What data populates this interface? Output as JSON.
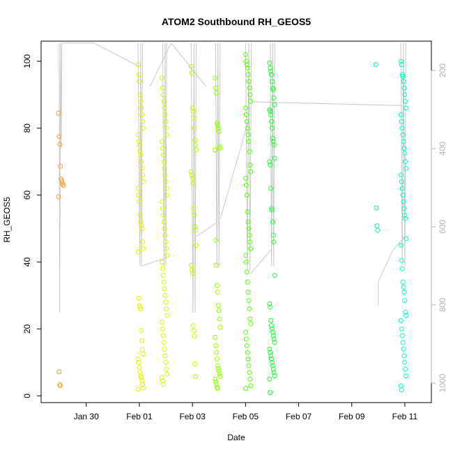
{
  "chart_data": {
    "type": "scatter",
    "title": "ATOM2 Southbound RH_GEOS5",
    "xlabel": "Date",
    "ylabel": "RH_GEOS5",
    "x_ticks": [
      "Jan 30",
      "Feb 01",
      "Feb 03",
      "Feb 05",
      "Feb 07",
      "Feb 09",
      "Feb 11"
    ],
    "x_tick_days": [
      30,
      32,
      34,
      36,
      38,
      40,
      42
    ],
    "xlim_days": [
      28.3,
      43.0
    ],
    "ylim": [
      -2,
      106
    ],
    "y_ticks": [
      0,
      20,
      40,
      60,
      80,
      100
    ],
    "right_axis_ticks": [
      200,
      400,
      600,
      800,
      1000
    ],
    "right_axis_lim": [
      1050,
      125
    ],
    "grid": false,
    "legend": "none",
    "point_color_scale": [
      "#ff8c00",
      "#d4ff00",
      "#00ff00",
      "#00ffcc"
    ],
    "line_color": "#c8c8c8",
    "series": [
      {
        "day": 29.05,
        "color": "#f5a030",
        "rh": [
          84.5,
          77.5,
          75.2,
          68.6,
          64.8,
          64.2,
          63.6,
          63.2,
          62.8,
          59.5,
          7.2,
          3.4,
          3.0
        ],
        "pressure_profile": [
          [
            28.98,
            130
          ],
          [
            29.0,
            820
          ],
          [
            29.03,
            130
          ],
          [
            29.06,
            400
          ],
          [
            29.08,
            130
          ]
        ]
      },
      {
        "day": 32.05,
        "color": "#e0f000",
        "rh": [
          99,
          96,
          94,
          90,
          88,
          86,
          84,
          82,
          80,
          78,
          76,
          75,
          73,
          72,
          70,
          68,
          66,
          64,
          62,
          60,
          58,
          54,
          52,
          51,
          50,
          46,
          44,
          43,
          29.2,
          27,
          26.5,
          26,
          19.5,
          16.5,
          13.8,
          12.5,
          11,
          10,
          8.5,
          7,
          6,
          5.5,
          4.5,
          3.4,
          2.4,
          2.0
        ],
        "pressure_profile": [
          [
            31.95,
            130
          ],
          [
            32.02,
            700
          ],
          [
            32.05,
            130
          ],
          [
            32.08,
            700
          ],
          [
            32.12,
            130
          ]
        ]
      },
      {
        "day": 32.95,
        "color": "#d8f400",
        "rh": [
          95,
          92,
          90,
          88,
          86,
          84,
          82,
          80,
          78,
          76,
          74,
          72,
          70,
          68,
          66,
          64,
          62,
          60,
          58,
          56,
          54,
          52,
          50,
          48,
          46,
          44,
          42,
          40,
          38,
          36,
          34,
          32,
          30,
          28,
          26,
          24,
          22,
          20,
          18,
          16,
          14,
          12,
          10,
          8,
          6.5,
          5.5,
          4.5,
          3.5
        ],
        "pressure_profile": [
          [
            32.88,
            130
          ],
          [
            32.93,
            700
          ],
          [
            32.97,
            130
          ],
          [
            33.0,
            700
          ],
          [
            33.03,
            130
          ]
        ]
      },
      {
        "day": 34.05,
        "color": "#b8ff00",
        "rh": [
          98.5,
          96.5,
          86,
          85,
          83,
          80,
          76.5,
          75,
          73.5,
          67,
          66,
          65,
          63.5,
          56,
          54,
          50.5,
          49.5,
          45,
          39,
          37.6,
          36.5,
          21,
          19.5,
          17.8,
          9.6,
          5.8
        ],
        "pressure_profile": [
          [
            33.95,
            130
          ],
          [
            34.02,
            820
          ],
          [
            34.06,
            130
          ],
          [
            34.1,
            820
          ],
          [
            34.14,
            130
          ]
        ]
      },
      {
        "day": 34.95,
        "color": "#8cff00",
        "rh": [
          95,
          92,
          90.5,
          81.5,
          80.8,
          80,
          79,
          74.5,
          74,
          73.5,
          46.5,
          39,
          33,
          31,
          27,
          25.5,
          23,
          20.5,
          17.5,
          15,
          13,
          11,
          9,
          8.2,
          7.4,
          6.6,
          5.8,
          5,
          4.2,
          3.4,
          2.6,
          2.2
        ],
        "pressure_profile": [
          [
            34.87,
            130
          ],
          [
            34.92,
            700
          ],
          [
            34.96,
            130
          ],
          [
            35.0,
            700
          ],
          [
            35.04,
            130
          ]
        ]
      },
      {
        "day": 36.1,
        "color": "#4cff00",
        "rh": [
          102,
          100,
          99,
          98,
          96,
          94,
          92,
          90,
          88,
          86,
          84,
          82,
          80,
          78,
          76,
          73,
          69,
          67,
          65,
          63,
          60,
          55,
          52,
          50,
          48,
          46,
          44,
          42,
          40,
          37,
          34,
          31,
          28.5,
          26,
          23,
          21.5,
          19,
          17,
          15,
          13,
          11,
          9,
          7,
          5,
          3,
          2.2
        ],
        "pressure_profile": [
          [
            36.0,
            130
          ],
          [
            36.07,
            710
          ],
          [
            36.12,
            130
          ],
          [
            36.17,
            710
          ],
          [
            36.22,
            130
          ]
        ]
      },
      {
        "day": 37.0,
        "color": "#1cff30",
        "rh": [
          99.5,
          98,
          97,
          96,
          94,
          92,
          91.5,
          89,
          87,
          85.5,
          85,
          84,
          82,
          80,
          77,
          76,
          75,
          71,
          70,
          69,
          62,
          56,
          55.5,
          52,
          48,
          46,
          36,
          27.5,
          26.5,
          22.5,
          21,
          20,
          19,
          18,
          17,
          16,
          14,
          13,
          12,
          11,
          10,
          9,
          8,
          7,
          6,
          5,
          1
        ],
        "pressure_profile": [
          [
            36.93,
            130
          ],
          [
            36.98,
            700
          ],
          [
            37.02,
            130
          ],
          [
            37.06,
            700
          ],
          [
            37.1,
            130
          ]
        ]
      },
      {
        "day": 41.0,
        "color": "#10f0b0",
        "rh": [
          99,
          56.2,
          50.8,
          49.5
        ],
        "pressure_profile": [
          [
            41.0,
            740
          ],
          [
            41.0,
            800
          ]
        ]
      },
      {
        "day": 41.95,
        "color": "#00f8c8",
        "rh": [
          100,
          99,
          96,
          95.5,
          94,
          92,
          90,
          88,
          86,
          84,
          82,
          80,
          78,
          76,
          74,
          72.5,
          70,
          68,
          66,
          64,
          62,
          60,
          58,
          56,
          54,
          53,
          47,
          45,
          40.5,
          38,
          34,
          32.5,
          31,
          28.5,
          25,
          24,
          22.5,
          20,
          18,
          16,
          14,
          12,
          10,
          8,
          6,
          3,
          1.8
        ],
        "pressure_profile": [
          [
            41.85,
            130
          ],
          [
            41.9,
            700
          ],
          [
            41.95,
            130
          ],
          [
            42.0,
            700
          ],
          [
            42.04,
            130
          ]
        ]
      }
    ],
    "connector_lines": [
      {
        "from": [
          29.1,
          130
        ],
        "to": [
          30.3,
          130
        ]
      },
      {
        "from": [
          30.3,
          130
        ],
        "to": [
          32.0,
          190
        ]
      },
      {
        "from": [
          32.4,
          240
        ],
        "to": [
          33.2,
          130
        ]
      },
      {
        "from": [
          33.2,
          130
        ],
        "to": [
          34.5,
          240
        ]
      },
      {
        "from": [
          32.1,
          700
        ],
        "to": [
          33.0,
          680
        ]
      },
      {
        "from": [
          34.15,
          625
        ],
        "to": [
          34.9,
          590
        ]
      },
      {
        "from": [
          35.05,
          580
        ],
        "to": [
          36.1,
          330
        ]
      },
      {
        "from": [
          36.2,
          720
        ],
        "to": [
          37.0,
          655
        ]
      },
      {
        "from": [
          36.2,
          280
        ],
        "to": [
          41.9,
          290
        ]
      },
      {
        "from": [
          41.0,
          740
        ],
        "to": [
          41.55,
          660
        ]
      },
      {
        "from": [
          41.55,
          660
        ],
        "to": [
          42.0,
          625
        ]
      }
    ]
  }
}
